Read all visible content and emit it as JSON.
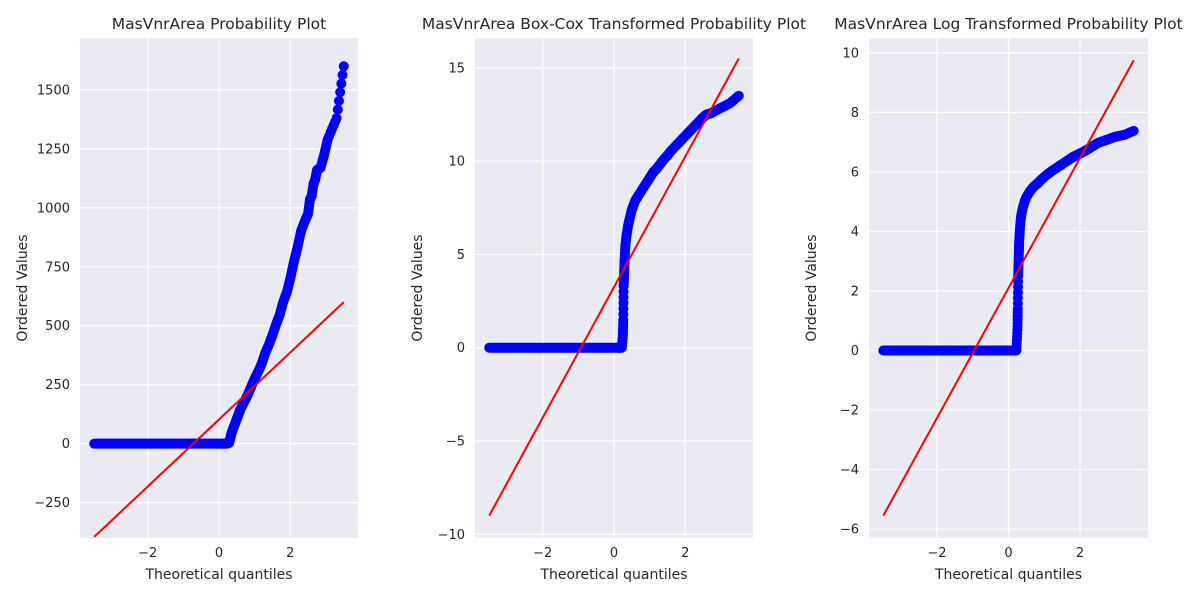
{
  "chart_data": [
    {
      "type": "scatter",
      "title": "MasVnrArea Probability Plot",
      "xlabel": "Theoretical quantiles",
      "ylabel": "Ordered Values",
      "xlim": [
        -3.9,
        3.9
      ],
      "ylim": [
        -400,
        1720
      ],
      "xticks": [
        -2,
        0,
        2
      ],
      "yticks": [
        -250,
        0,
        250,
        500,
        750,
        1000,
        1250,
        1500
      ],
      "ytick_labels": [
        "−250",
        "0",
        "250",
        "500",
        "750",
        "1000",
        "1250",
        "1500"
      ],
      "xtick_labels": [
        "−2",
        "0",
        "2"
      ],
      "grid": true,
      "marker_color": "#0000ff",
      "line_color": "#ff0000",
      "fit_line": {
        "x": [
          -3.5,
          3.5
        ],
        "y": [
          -395,
          600
        ]
      },
      "points": {
        "x": [
          -3.5,
          -3.3,
          -3.1,
          -2.9,
          -2.7,
          -2.5,
          -2.3,
          -2.1,
          -1.9,
          -1.7,
          -1.5,
          -1.3,
          -1.1,
          -0.9,
          -0.7,
          -0.5,
          -0.3,
          -0.1,
          0.1,
          0.22,
          0.28,
          0.3,
          0.32,
          0.35,
          0.4,
          0.45,
          0.5,
          0.55,
          0.6,
          0.7,
          0.8,
          0.9,
          1.0,
          1.1,
          1.2,
          1.3,
          1.4,
          1.5,
          1.6,
          1.7,
          1.8,
          1.9,
          2.0,
          2.1,
          2.2,
          2.3,
          2.4,
          2.5,
          2.55,
          2.6,
          2.65,
          2.7,
          2.75,
          2.85,
          2.95,
          3.05,
          3.3,
          3.5
        ],
        "y": [
          0,
          0,
          0,
          0,
          0,
          0,
          0,
          0,
          0,
          0,
          0,
          0,
          0,
          0,
          0,
          0,
          0,
          0,
          0,
          0,
          3,
          12,
          25,
          45,
          65,
          85,
          105,
          125,
          145,
          175,
          205,
          240,
          275,
          305,
          340,
          385,
          420,
          460,
          505,
          545,
          600,
          640,
          700,
          770,
          830,
          900,
          940,
          975,
          1035,
          1050,
          1100,
          1120,
          1160,
          1170,
          1225,
          1290,
          1380,
          1600
        ]
      }
    },
    {
      "type": "scatter",
      "title": "MasVnrArea Box-Cox Transformed Probability Plot",
      "xlabel": "Theoretical quantiles",
      "ylabel": "Ordered Values",
      "xlim": [
        -3.9,
        3.9
      ],
      "ylim": [
        -10.2,
        16.6
      ],
      "xticks": [
        -2,
        0,
        2
      ],
      "yticks": [
        -10,
        -5,
        0,
        5,
        10,
        15
      ],
      "ytick_labels": [
        "−10",
        "−5",
        "0",
        "5",
        "10",
        "15"
      ],
      "xtick_labels": [
        "−2",
        "0",
        "2"
      ],
      "grid": true,
      "marker_color": "#0000ff",
      "line_color": "#ff0000",
      "fit_line": {
        "x": [
          -3.5,
          3.5
        ],
        "y": [
          -9.0,
          15.5
        ]
      },
      "points": {
        "x": [
          -3.5,
          -3.3,
          -3.1,
          -2.9,
          -2.7,
          -2.5,
          -2.3,
          -2.1,
          -1.9,
          -1.7,
          -1.5,
          -1.3,
          -1.1,
          -0.9,
          -0.7,
          -0.5,
          -0.3,
          -0.1,
          0.1,
          0.22,
          0.25,
          0.26,
          0.27,
          0.28,
          0.29,
          0.3,
          0.32,
          0.35,
          0.4,
          0.45,
          0.5,
          0.6,
          0.7,
          0.8,
          0.9,
          1.0,
          1.1,
          1.2,
          1.3,
          1.4,
          1.5,
          1.6,
          1.7,
          1.8,
          1.9,
          2.0,
          2.1,
          2.2,
          2.3,
          2.4,
          2.5,
          2.6,
          2.7,
          2.8,
          2.9,
          3.05,
          3.25,
          3.5
        ],
        "y": [
          0,
          0,
          0,
          0,
          0,
          0,
          0,
          0,
          0,
          0,
          0,
          0,
          0,
          0,
          0,
          0,
          0,
          0,
          0,
          0,
          0.7,
          1.5,
          3.3,
          3.8,
          4.3,
          4.8,
          5.5,
          6.0,
          6.6,
          7.0,
          7.4,
          7.9,
          8.2,
          8.5,
          8.8,
          9.1,
          9.4,
          9.6,
          9.85,
          10.1,
          10.3,
          10.55,
          10.75,
          10.95,
          11.15,
          11.35,
          11.55,
          11.75,
          11.95,
          12.15,
          12.35,
          12.5,
          12.55,
          12.65,
          12.75,
          12.9,
          13.1,
          13.5
        ]
      }
    },
    {
      "type": "scatter",
      "title": "MasVnrArea Log Transformed Probability Plot",
      "xlabel": "Theoretical quantiles",
      "ylabel": "Ordered Values",
      "xlim": [
        -3.9,
        3.9
      ],
      "ylim": [
        -6.3,
        10.5
      ],
      "xticks": [
        -2,
        0,
        2
      ],
      "yticks": [
        -6,
        -4,
        -2,
        0,
        2,
        4,
        6,
        8,
        10
      ],
      "ytick_labels": [
        "−6",
        "−4",
        "−2",
        "0",
        "2",
        "4",
        "6",
        "8",
        "10"
      ],
      "xtick_labels": [
        "−2",
        "0",
        "2"
      ],
      "grid": true,
      "marker_color": "#0000ff",
      "line_color": "#ff0000",
      "fit_line": {
        "x": [
          -3.5,
          3.5
        ],
        "y": [
          -5.55,
          9.75
        ]
      },
      "points": {
        "x": [
          -3.5,
          -3.3,
          -3.1,
          -2.9,
          -2.7,
          -2.5,
          -2.3,
          -2.1,
          -1.9,
          -1.7,
          -1.5,
          -1.3,
          -1.1,
          -0.9,
          -0.7,
          -0.5,
          -0.3,
          -0.1,
          0.1,
          0.22,
          0.25,
          0.26,
          0.27,
          0.28,
          0.29,
          0.3,
          0.32,
          0.35,
          0.4,
          0.45,
          0.5,
          0.6,
          0.7,
          0.8,
          0.9,
          1.0,
          1.1,
          1.2,
          1.3,
          1.4,
          1.5,
          1.6,
          1.7,
          1.8,
          1.9,
          2.0,
          2.1,
          2.2,
          2.3,
          2.4,
          2.5,
          2.6,
          2.7,
          2.8,
          2.9,
          3.05,
          3.25,
          3.5
        ],
        "y": [
          0,
          0,
          0,
          0,
          0,
          0,
          0,
          0,
          0,
          0,
          0,
          0,
          0,
          0,
          0,
          0,
          0,
          0,
          0,
          0,
          0.7,
          1.4,
          2.5,
          2.9,
          3.3,
          3.7,
          4.1,
          4.5,
          4.8,
          5.0,
          5.15,
          5.35,
          5.5,
          5.6,
          5.72,
          5.83,
          5.93,
          6.02,
          6.1,
          6.18,
          6.26,
          6.34,
          6.42,
          6.5,
          6.56,
          6.62,
          6.68,
          6.75,
          6.82,
          6.9,
          6.97,
          7.02,
          7.06,
          7.1,
          7.15,
          7.2,
          7.25,
          7.38
        ]
      }
    }
  ]
}
